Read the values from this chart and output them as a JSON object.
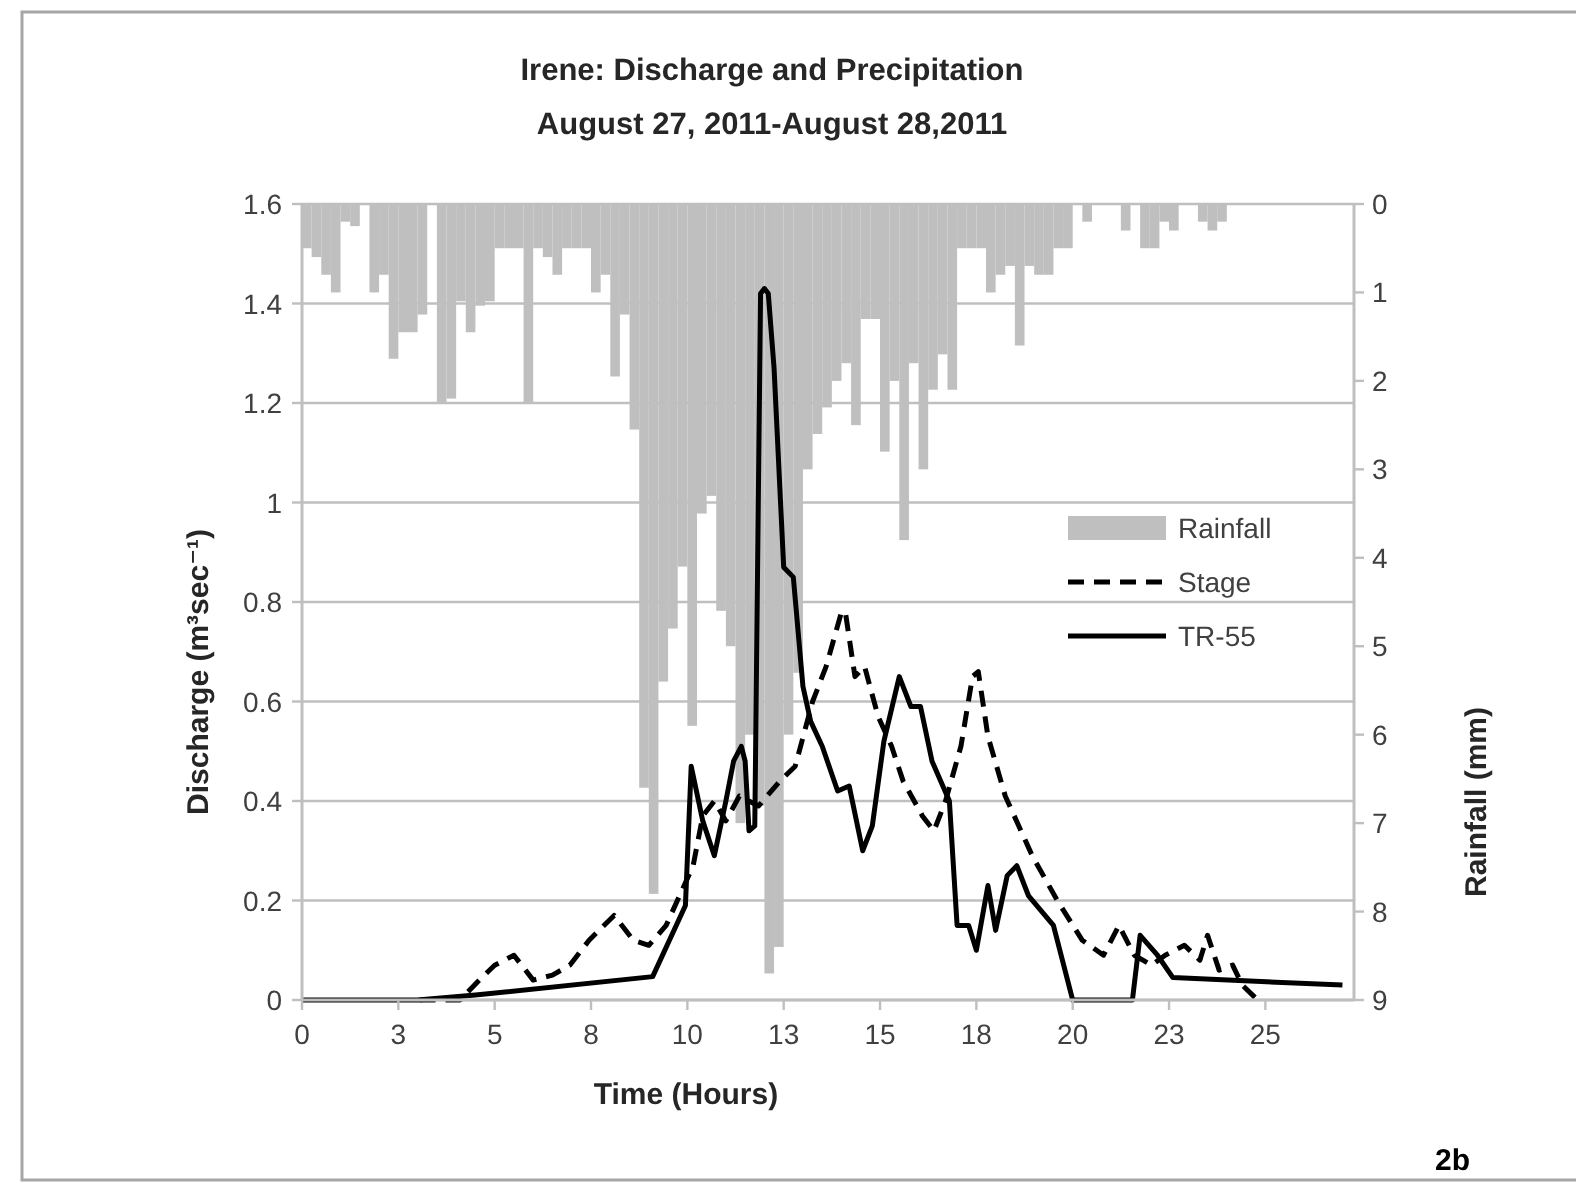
{
  "chart_data": {
    "type": "line",
    "title": "Irene: Discharge  and Precipitation",
    "subtitle": "August 27, 2011-August 28,2011",
    "xlabel": "Time (Hours)",
    "ylabel": "Discharge  (m³sec⁻¹)",
    "y2label": "Rainfall (mm)",
    "annotations": [
      "2b"
    ],
    "xlim": [
      0,
      27.3
    ],
    "xticks": [
      0,
      {
        "value": 2.5,
        "label": "3"
      },
      5,
      {
        "value": 7.5,
        "label": "8"
      },
      10,
      {
        "value": 12.5,
        "label": "13"
      },
      15,
      {
        "value": 17.5,
        "label": "18"
      },
      20,
      {
        "value": 22.5,
        "label": "23"
      },
      25
    ],
    "ylim": [
      0,
      1.6
    ],
    "yticks": [
      0,
      0.2,
      0.4,
      0.6,
      0.8,
      1,
      1.2,
      1.4,
      1.6
    ],
    "y2lim": [
      9,
      0
    ],
    "y2ticks": [
      0,
      1,
      2,
      3,
      4,
      5,
      6,
      7,
      8,
      9
    ],
    "grid": "y",
    "legend": "right",
    "series": [
      {
        "name": "Rainfall",
        "type": "bar",
        "axis": "y2",
        "color": "#bfbfbf",
        "x": [
          0.125,
          0.375,
          0.625,
          0.875,
          1.125,
          1.375,
          1.625,
          1.875,
          2.125,
          2.375,
          2.625,
          2.875,
          3.125,
          3.375,
          3.625,
          3.875,
          4.125,
          4.375,
          4.625,
          4.875,
          5.125,
          5.375,
          5.625,
          5.875,
          6.125,
          6.375,
          6.625,
          6.875,
          7.125,
          7.375,
          7.625,
          7.875,
          8.125,
          8.375,
          8.625,
          8.875,
          9.125,
          9.375,
          9.625,
          9.875,
          10.125,
          10.375,
          10.625,
          10.875,
          11.125,
          11.375,
          11.625,
          11.875,
          12.125,
          12.375,
          12.625,
          12.875,
          13.125,
          13.375,
          13.625,
          13.875,
          14.125,
          14.375,
          14.625,
          14.875,
          15.125,
          15.375,
          15.625,
          15.875,
          16.125,
          16.375,
          16.625,
          16.875,
          17.125,
          17.375,
          17.625,
          17.875,
          18.125,
          18.375,
          18.625,
          18.875,
          19.125,
          19.375,
          19.625,
          19.875,
          20.125,
          20.375,
          20.625,
          20.875,
          21.125,
          21.375,
          21.625,
          21.875,
          22.125,
          22.375,
          22.625,
          22.875,
          23.125,
          23.375,
          23.625,
          23.875
        ],
        "values": [
          0.5,
          0.6,
          0.8,
          1.0,
          0.2,
          0.25,
          0,
          1.0,
          0.8,
          1.75,
          1.45,
          1.45,
          1.25,
          0,
          2.25,
          2.2,
          1.1,
          1.45,
          1.15,
          1.1,
          0.5,
          0.5,
          0.5,
          2.25,
          0.5,
          0.6,
          0.8,
          0.5,
          0.5,
          0.5,
          1.0,
          0.8,
          1.95,
          1.25,
          2.55,
          6.6,
          7.8,
          5.4,
          4.8,
          4.1,
          5.9,
          3.5,
          3.3,
          4.6,
          5.0,
          7.0,
          6.0,
          6.8,
          8.7,
          8.4,
          6.0,
          5.3,
          3.0,
          2.6,
          2.3,
          2.0,
          1.8,
          2.5,
          1.3,
          1.3,
          2.8,
          2.0,
          3.8,
          1.8,
          3.0,
          2.1,
          1.7,
          2.1,
          0.5,
          0.5,
          0.5,
          1.0,
          0.8,
          0.7,
          1.6,
          0.7,
          0.8,
          0.8,
          0.5,
          0.5,
          0,
          0.2,
          0,
          0,
          0,
          0.3,
          0,
          0.5,
          0.5,
          0.2,
          0.3,
          0,
          0,
          0.2,
          0.3,
          0.2
        ]
      },
      {
        "name": "Stage",
        "line_style": "dashed",
        "color": "#000000",
        "x": [
          3.05,
          4.1,
          4.6,
          5.0,
          5.5,
          6.0,
          6.5,
          6.95,
          7.45,
          8.1,
          8.6,
          9.0,
          9.45,
          9.8,
          10.15,
          10.4,
          10.7,
          11.0,
          11.35,
          11.85,
          12.4,
          12.8,
          13.25,
          13.6,
          14.0,
          14.1,
          14.35,
          14.6,
          14.95,
          15.3,
          15.6,
          16.1,
          16.4,
          16.7,
          17.1,
          17.4,
          17.55,
          17.8,
          18.25,
          18.95,
          19.6,
          20.25,
          20.8,
          21.2,
          21.6,
          22.05,
          22.4,
          22.9,
          23.3,
          23.5,
          23.8,
          24.15,
          24.4,
          24.8
        ],
        "values": [
          0,
          0,
          0.04,
          0.07,
          0.09,
          0.04,
          0.05,
          0.07,
          0.12,
          0.17,
          0.12,
          0.11,
          0.15,
          0.21,
          0.27,
          0.37,
          0.4,
          0.36,
          0.41,
          0.39,
          0.44,
          0.47,
          0.6,
          0.67,
          0.78,
          0.78,
          0.65,
          0.67,
          0.57,
          0.51,
          0.44,
          0.37,
          0.34,
          0.4,
          0.51,
          0.65,
          0.66,
          0.53,
          0.41,
          0.29,
          0.2,
          0.12,
          0.09,
          0.15,
          0.09,
          0.07,
          0.09,
          0.11,
          0.08,
          0.13,
          0.06,
          0.07,
          0.03,
          0
        ]
      },
      {
        "name": "TR-55",
        "line_style": "solid",
        "color": "#000000",
        "x": [
          0,
          3,
          4.5,
          9.1,
          9.95,
          10.1,
          10.4,
          10.7,
          11.0,
          11.2,
          11.4,
          11.5,
          11.6,
          11.75,
          11.9,
          12.0,
          12.1,
          12.25,
          12.5,
          12.75,
          13.0,
          13.2,
          13.5,
          13.9,
          14.2,
          14.55,
          14.8,
          15.1,
          15.5,
          15.8,
          16.05,
          16.35,
          16.8,
          17.0,
          17.3,
          17.5,
          17.8,
          18.0,
          18.3,
          18.55,
          18.85,
          19.5,
          20.0,
          21.55,
          21.75,
          22.2,
          22.6,
          27.0
        ],
        "values": [
          0,
          0,
          0.01,
          0.047,
          0.19,
          0.47,
          0.36,
          0.29,
          0.4,
          0.48,
          0.51,
          0.48,
          0.34,
          0.35,
          1.42,
          1.43,
          1.42,
          1.27,
          0.87,
          0.85,
          0.63,
          0.56,
          0.51,
          0.42,
          0.43,
          0.3,
          0.35,
          0.52,
          0.65,
          0.59,
          0.59,
          0.48,
          0.4,
          0.15,
          0.15,
          0.1,
          0.23,
          0.14,
          0.25,
          0.27,
          0.21,
          0.15,
          0,
          0,
          0.13,
          0.09,
          0.045,
          0.03
        ]
      }
    ]
  }
}
